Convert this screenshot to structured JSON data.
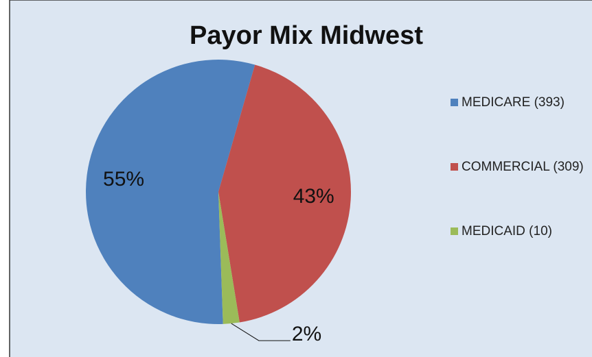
{
  "chart_data": {
    "type": "pie",
    "title": "Payor Mix Midwest",
    "categories": [
      "MEDICARE (393)",
      "COMMERCIAL (309)",
      "MEDICAID (10)"
    ],
    "values": [
      55,
      43,
      2
    ],
    "value_labels": [
      "55%",
      "43%",
      "2%"
    ],
    "colors": [
      "#4f81bd",
      "#c0504d",
      "#9bbb59"
    ],
    "legend": "right"
  }
}
